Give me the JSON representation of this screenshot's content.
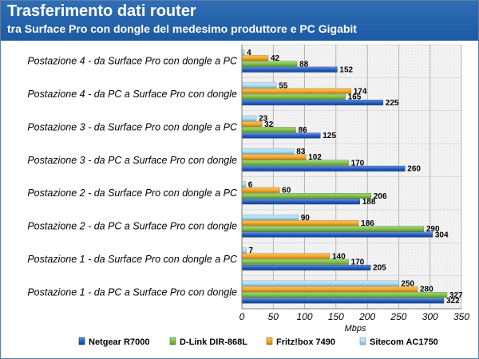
{
  "header": {
    "title": "Trasferimento dati router",
    "subtitle": "tra Surface Pro con  dongle del medesimo produttore e PC Gigabit"
  },
  "chart_data": {
    "type": "bar",
    "orientation": "horizontal",
    "title": "Trasferimento dati router",
    "subtitle": "tra Surface Pro con  dongle del medesimo produttore e PC Gigabit",
    "xlabel": "Mbps",
    "ylabel": "",
    "xlim": [
      0,
      350
    ],
    "xticks": [
      0,
      50,
      100,
      150,
      200,
      250,
      300,
      350
    ],
    "grid": true,
    "legend_position": "bottom",
    "categories": [
      "Postazione 4 - da Surface Pro con dongle a PC",
      "Postazione 4 - da PC a Surface Pro con dongle",
      "Postazione 3 - da Surface Pro con dongle a PC",
      "Postazione 3 - da PC a Surface Pro con dongle",
      "Postazione 2 - da Surface Pro con dongle a PC",
      "Postazione 2 - da PC a Surface Pro con dongle",
      "Postazione 1 - da Surface Pro con dongle a PC",
      "Postazione 1 - da PC a Surface Pro con dongle"
    ],
    "series": [
      {
        "name": "Netgear R7000",
        "color": "#1f5bc0",
        "values": [
          152,
          225,
          125,
          260,
          188,
          304,
          205,
          322
        ]
      },
      {
        "name": "D-Link DIR-868L",
        "color": "#7ac143",
        "values": [
          88,
          165,
          86,
          170,
          206,
          290,
          170,
          327
        ]
      },
      {
        "name": "Fritz!box 7490",
        "color": "#f5a623",
        "values": [
          42,
          174,
          32,
          102,
          60,
          186,
          140,
          280
        ]
      },
      {
        "name": "Sitecom AC1750",
        "color": "#a8e0f5",
        "values": [
          4,
          55,
          23,
          83,
          6,
          90,
          7,
          250
        ]
      }
    ]
  }
}
